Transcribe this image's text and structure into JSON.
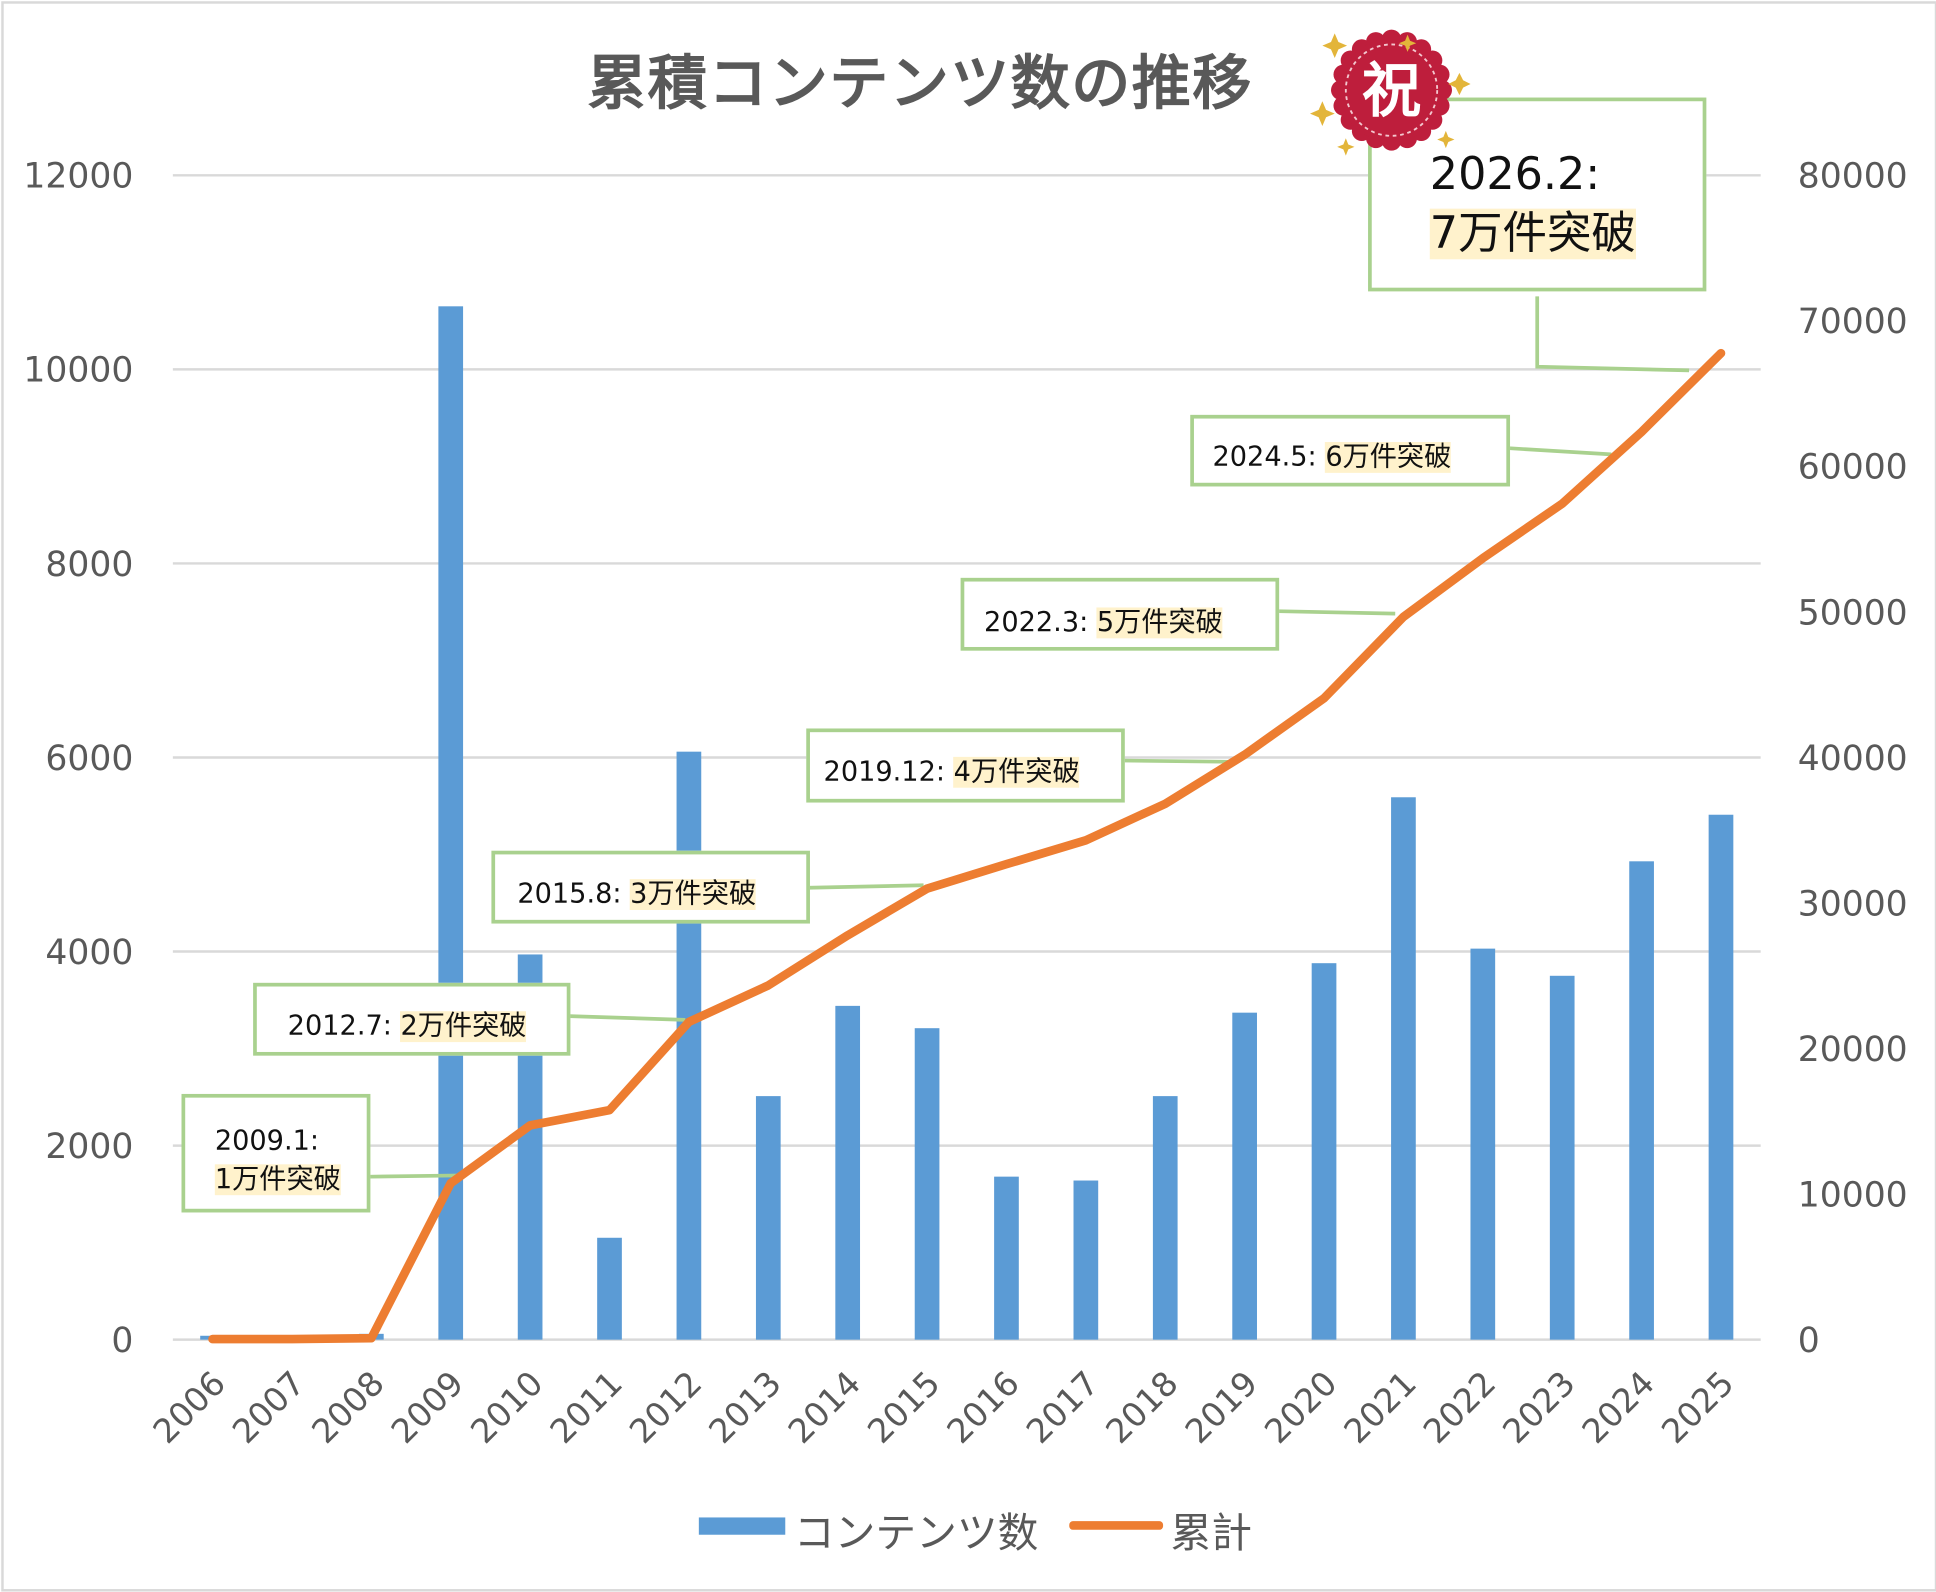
{
  "chart_data": {
    "type": "bar+line",
    "title": "累積コンテンツ数の推移",
    "categories": [
      "2006",
      "2007",
      "2008",
      "2009",
      "2010",
      "2011",
      "2012",
      "2013",
      "2014",
      "2015",
      "2016",
      "2017",
      "2018",
      "2019",
      "2020",
      "2021",
      "2022",
      "2023",
      "2024",
      "2025"
    ],
    "series": [
      {
        "name": "コンテンツ数",
        "type": "bar",
        "axis": "left",
        "color": "#5b9bd5",
        "values": [
          40,
          0,
          60,
          10650,
          3970,
          1050,
          6060,
          2510,
          3440,
          3210,
          1680,
          1640,
          2510,
          3370,
          3880,
          5590,
          4030,
          3750,
          4930,
          5410
        ]
      },
      {
        "name": "累計",
        "type": "line",
        "axis": "right",
        "color": "#ed7d31",
        "values": [
          40,
          40,
          100,
          10750,
          14720,
          15770,
          21830,
          24340,
          27780,
          30990,
          32670,
          34310,
          36820,
          40190,
          44070,
          49660,
          53690,
          57440,
          62370,
          67780
        ]
      }
    ],
    "left_axis": {
      "ylim": [
        0,
        12000
      ],
      "ticks": [
        "0",
        "2000",
        "4000",
        "6000",
        "8000",
        "10000",
        "12000"
      ]
    },
    "right_axis": {
      "ylim": [
        0,
        80000
      ],
      "ticks": [
        "0",
        "10000",
        "20000",
        "30000",
        "40000",
        "50000",
        "60000",
        "70000",
        "80000"
      ]
    },
    "grid": true,
    "legend": "bottom",
    "annotations": [
      {
        "date": "2009.1:",
        "text": "1万件突破",
        "category": "2009"
      },
      {
        "date": "2012.7:",
        "text": "2万件突破",
        "category": "2012"
      },
      {
        "date": "2015.8:",
        "text": "3万件突破",
        "category": "2015"
      },
      {
        "date": "2019.12:",
        "text": "4万件突破",
        "category": "2019"
      },
      {
        "date": "2022.3:",
        "text": "5万件突破",
        "category": "2021"
      },
      {
        "date": "2024.5:",
        "text": "6万件突破",
        "category": "2024"
      },
      {
        "date": "2026.2:",
        "text": "7万件突破",
        "category": "2025"
      }
    ],
    "badge": "祝"
  },
  "colors": {
    "bar": "#5b9bd5",
    "line": "#ed7d31",
    "grid": "#d9d9d9",
    "note_border": "#a9d18e",
    "highlight": "#fff2cc",
    "seal": "#be1e3c"
  }
}
